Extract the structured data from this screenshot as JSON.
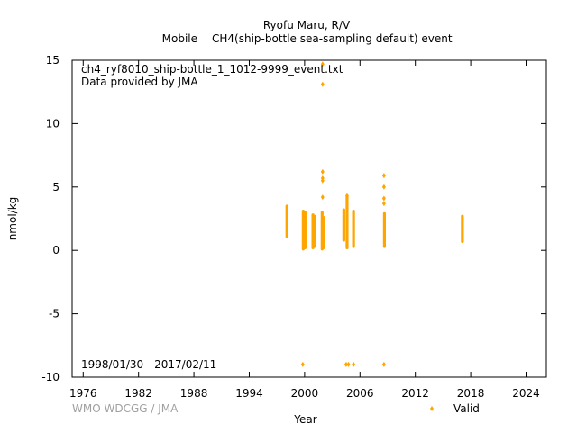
{
  "chart_data": {
    "type": "scatter",
    "title": "Ryofu Maru, R/V",
    "subtitle_left": "Mobile",
    "subtitle_right": "CH4(ship-bottle sea-sampling default) event",
    "file_label": "ch4_ryf8010_ship-bottle_1_1012-9999_event.txt",
    "provider_label": "Data provided by JMA",
    "date_range_label": "1998/01/30 - 2017/02/11",
    "credit": "WMO WDCGG / JMA",
    "xlabel": "Year",
    "ylabel": "nmol/kg",
    "xlim": [
      1974.8,
      2026.2
    ],
    "ylim": [
      -10,
      15
    ],
    "x_ticks": [
      1976,
      1982,
      1988,
      1994,
      2000,
      2006,
      2012,
      2018,
      2024
    ],
    "y_ticks": [
      -10,
      -5,
      0,
      5,
      10,
      15
    ],
    "grid": false,
    "legend_position": "bottom-right",
    "series": [
      {
        "name": "Valid",
        "color": "#FFA500",
        "columns": [
          {
            "x": 1998.08,
            "ymin": 1.1,
            "ymax": 3.5
          },
          {
            "x": 1999.85,
            "ymin": 0.1,
            "ymax": 3.1
          },
          {
            "x": 2000.05,
            "ymin": 0.2,
            "ymax": 3.0
          },
          {
            "x": 2000.9,
            "ymin": 0.2,
            "ymax": 2.8
          },
          {
            "x": 2001.05,
            "ymin": 0.3,
            "ymax": 2.7
          },
          {
            "x": 2001.9,
            "ymin": 0.1,
            "ymax": 3.0
          },
          {
            "x": 2002.05,
            "ymin": 0.2,
            "ymax": 2.6
          },
          {
            "x": 2004.25,
            "ymin": 0.8,
            "ymax": 3.2
          },
          {
            "x": 2004.6,
            "ymin": 0.2,
            "ymax": 4.3
          },
          {
            "x": 2005.3,
            "ymin": 0.3,
            "ymax": 3.1
          },
          {
            "x": 2008.65,
            "ymin": 0.3,
            "ymax": 2.9
          },
          {
            "x": 2017.1,
            "ymin": 0.7,
            "ymax": 2.7
          }
        ],
        "points": [
          {
            "x": 2001.95,
            "y": 14.7
          },
          {
            "x": 2001.95,
            "y": 13.1
          },
          {
            "x": 2001.95,
            "y": 6.2
          },
          {
            "x": 2001.95,
            "y": 5.7
          },
          {
            "x": 2001.95,
            "y": 5.5
          },
          {
            "x": 2001.95,
            "y": 4.2
          },
          {
            "x": 2004.6,
            "y": 4.3
          },
          {
            "x": 2008.6,
            "y": 5.9
          },
          {
            "x": 2008.6,
            "y": 5.0
          },
          {
            "x": 2008.6,
            "y": 4.1
          },
          {
            "x": 2008.6,
            "y": 3.7
          },
          {
            "x": 1999.8,
            "y": -9.0
          },
          {
            "x": 2004.5,
            "y": -9.0
          },
          {
            "x": 2004.75,
            "y": -9.0
          },
          {
            "x": 2005.3,
            "y": -9.0
          },
          {
            "x": 2008.6,
            "y": -9.0
          }
        ]
      }
    ]
  }
}
